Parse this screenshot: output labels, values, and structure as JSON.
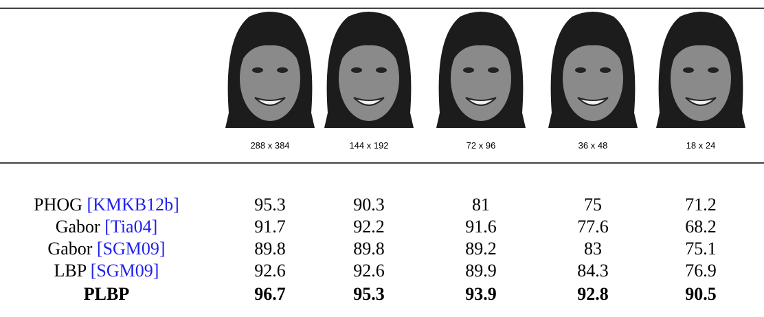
{
  "table": {
    "resolutions": [
      "288 x 384",
      "144 x 192",
      "72 x 96",
      "36 x 48",
      "18 x 24"
    ],
    "rows": [
      {
        "name": "PHOG",
        "cite": "[KMKB12b]",
        "values": [
          95.3,
          90.3,
          81,
          75,
          71.2
        ]
      },
      {
        "name": "Gabor",
        "cite": "[Tia04]",
        "values": [
          91.7,
          92.2,
          91.6,
          77.6,
          68.2
        ]
      },
      {
        "name": "Gabor",
        "cite": "[SGM09]",
        "values": [
          89.8,
          89.8,
          89.2,
          83,
          75.1
        ]
      },
      {
        "name": "LBP",
        "cite": "[SGM09]",
        "values": [
          92.6,
          92.6,
          89.9,
          84.3,
          76.9
        ]
      },
      {
        "name": "PLBP",
        "values": [
          96.7,
          95.3,
          93.9,
          92.8,
          90.5
        ]
      }
    ]
  }
}
